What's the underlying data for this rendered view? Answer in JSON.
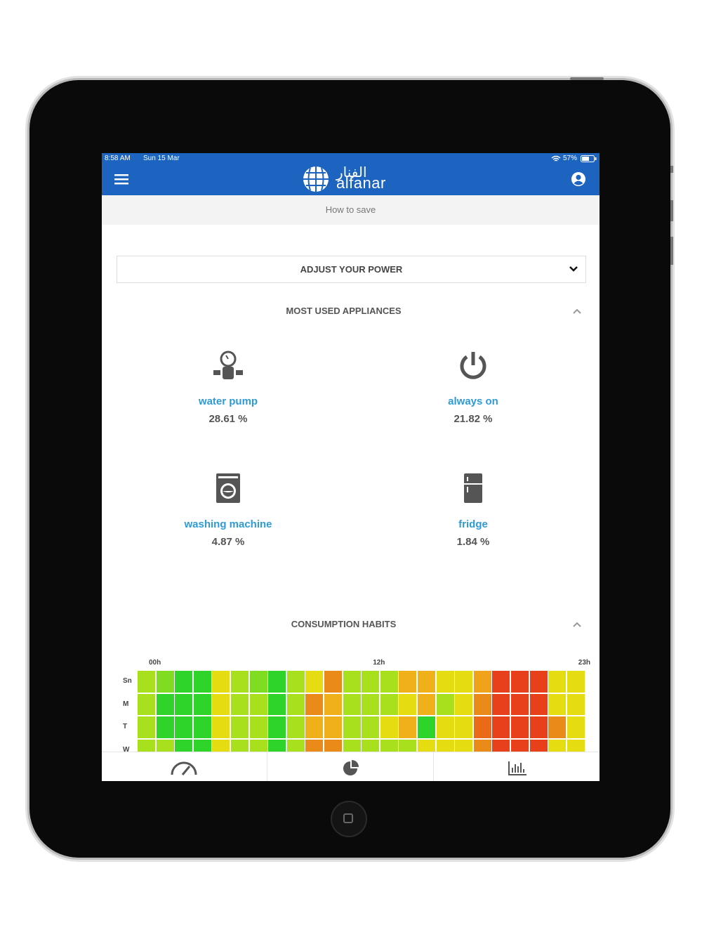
{
  "status_bar": {
    "time": "8:58 AM",
    "date": "Sun 15 Mar",
    "battery": "57%"
  },
  "header": {
    "logo_arabic": "الفنار",
    "logo_latin": "alfanar"
  },
  "subheader": {
    "title": "How to save"
  },
  "dropdown": {
    "label": "ADJUST YOUR POWER"
  },
  "appliances_section": {
    "title": "MOST USED APPLIANCES",
    "items": [
      {
        "name": "water pump",
        "share": "28.61 %"
      },
      {
        "name": "always on",
        "share": "21.82 %"
      },
      {
        "name": "washing machine",
        "share": "4.87 %"
      },
      {
        "name": "fridge",
        "share": "1.84 %"
      }
    ]
  },
  "habits_section": {
    "title": "CONSUMPTION HABITS",
    "column_labels": [
      "00h",
      "12h",
      "23h"
    ],
    "row_labels": [
      "Sn",
      "M",
      "T",
      "W"
    ],
    "cells": [
      [
        "#a8e01e",
        "#7fdc20",
        "#2fd42a",
        "#2fd42a",
        "#e6dc12",
        "#a8e01e",
        "#7fdc20",
        "#2fd42a",
        "#a8e01e",
        "#e6dc12",
        "#ea8a18",
        "#a8e01e",
        "#a8e01e",
        "#a8e01e",
        "#f0b01a",
        "#f0b01a",
        "#e6dc12",
        "#e6dc12",
        "#f0a31a",
        "#e8401a",
        "#e8401a",
        "#e8401a",
        "#e6dc12",
        "#e6dc12"
      ],
      [
        "#a8e01e",
        "#2fd42a",
        "#2fd42a",
        "#2fd42a",
        "#e6dc12",
        "#a8e01e",
        "#a8e01e",
        "#2fd42a",
        "#a8e01e",
        "#ea8a18",
        "#f0b01a",
        "#a8e01e",
        "#a8e01e",
        "#a8e01e",
        "#e6dc12",
        "#f0b01a",
        "#a8e01e",
        "#e6dc12",
        "#ea8a18",
        "#e8401a",
        "#e8401a",
        "#e8401a",
        "#e6dc12",
        "#e6dc12"
      ],
      [
        "#a8e01e",
        "#2fd42a",
        "#2fd42a",
        "#2fd42a",
        "#e6dc12",
        "#a8e01e",
        "#a8e01e",
        "#2fd42a",
        "#a8e01e",
        "#f0b01a",
        "#f0b01a",
        "#a8e01e",
        "#a8e01e",
        "#e6dc12",
        "#f0b01a",
        "#2fd42a",
        "#e6dc12",
        "#e6dc12",
        "#ea6a18",
        "#e8401a",
        "#e8401a",
        "#e8401a",
        "#ea8a18",
        "#e6dc12"
      ],
      [
        "#a8e01e",
        "#a8e01e",
        "#2fd42a",
        "#2fd42a",
        "#e6dc12",
        "#a8e01e",
        "#a8e01e",
        "#2fd42a",
        "#a8e01e",
        "#ea8a18",
        "#ea8a18",
        "#a8e01e",
        "#a8e01e",
        "#a8e01e",
        "#a8e01e",
        "#e6dc12",
        "#e6dc12",
        "#e6dc12",
        "#ea8a18",
        "#e8401a",
        "#e8401a",
        "#e8401a",
        "#e6dc12",
        "#e6dc12"
      ]
    ]
  }
}
